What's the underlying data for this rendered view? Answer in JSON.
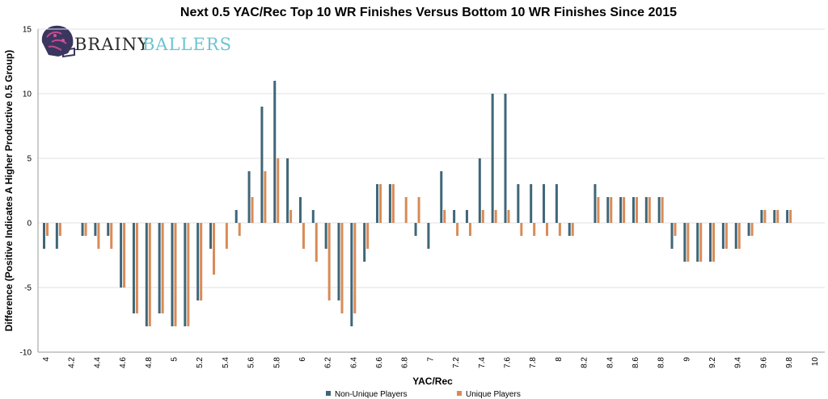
{
  "colors": {
    "non_unique": "#3f6678",
    "unique": "#d98b57",
    "grid": "#e2e2e2",
    "axis": "#999999",
    "logo_dark": "#2b2b2b",
    "logo_light": "#6cc4d2"
  },
  "logo": {
    "text_dark": "BRAINY",
    "text_light": "BALLERS",
    "icon": "football-helmet-brain-icon"
  },
  "chart_data": {
    "type": "bar",
    "title": "Next 0.5 YAC/Rec Top 10 WR Finishes Versus Bottom 10 WR Finishes Since 2015",
    "xlabel": "YAC/Rec",
    "ylabel": "Difference (Positive Indicates A Higher Productive 0.5 Group)",
    "ylim": [
      -10,
      15
    ],
    "yticks": [
      -10,
      -5,
      0,
      5,
      10,
      15
    ],
    "grid": "horizontal",
    "legend": "bottom-center",
    "categories": [
      "4",
      "4.1",
      "4.2",
      "4.3",
      "4.4",
      "4.5",
      "4.6",
      "4.7",
      "4.8",
      "4.9",
      "5",
      "5.1",
      "5.2",
      "5.3",
      "5.4",
      "5.5",
      "5.6",
      "5.7",
      "5.8",
      "5.9",
      "6",
      "6.1",
      "6.2",
      "6.3",
      "6.4",
      "6.5",
      "6.6",
      "6.7",
      "6.8",
      "6.9",
      "7",
      "7.1",
      "7.2",
      "7.3",
      "7.4",
      "7.5",
      "7.6",
      "7.7",
      "7.8",
      "7.9",
      "8",
      "8.1",
      "8.2",
      "8.3",
      "8.4",
      "8.5",
      "8.6",
      "8.7",
      "8.8",
      "8.9",
      "9",
      "9.1",
      "9.2",
      "9.3",
      "9.4",
      "9.5",
      "9.6",
      "9.7",
      "9.8",
      "9.9",
      "10"
    ],
    "category_labels": [
      "4",
      "",
      "4.2",
      "",
      "4.4",
      "",
      "4.6",
      "",
      "4.8",
      "",
      "5",
      "",
      "5.2",
      "",
      "5.4",
      "",
      "5.6",
      "",
      "5.8",
      "",
      "6",
      "",
      "6.2",
      "",
      "6.4",
      "",
      "6.6",
      "",
      "6.8",
      "",
      "7",
      "",
      "7.2",
      "",
      "7.4",
      "",
      "7.6",
      "",
      "7.8",
      "",
      "8",
      "",
      "8.2",
      "",
      "8.4",
      "",
      "8.6",
      "",
      "8.8",
      "",
      "9",
      "",
      "9.2",
      "",
      "9.4",
      "",
      "9.6",
      "",
      "9.8",
      "",
      "10"
    ],
    "series": [
      {
        "name": "Non-Unique Players",
        "values": [
          -2,
          -2,
          0,
          -1,
          -1,
          -1,
          -5,
          -7,
          -8,
          -7,
          -8,
          -8,
          -6,
          -2,
          0,
          1,
          4,
          9,
          11,
          5,
          2,
          1,
          -2,
          -6,
          -8,
          -3,
          3,
          3,
          0,
          -1,
          -2,
          4,
          1,
          1,
          5,
          10,
          10,
          3,
          3,
          3,
          3,
          -1,
          0,
          3,
          2,
          2,
          2,
          2,
          2,
          -2,
          -3,
          -3,
          -3,
          -2,
          -2,
          -1,
          1,
          1,
          1,
          0,
          0
        ]
      },
      {
        "name": "Unique Players",
        "values": [
          -1,
          -1,
          0,
          -1,
          -2,
          -2,
          -5,
          -7,
          -8,
          -7,
          -8,
          -8,
          -6,
          -4,
          -2,
          -1,
          2,
          4,
          5,
          1,
          -2,
          -3,
          -6,
          -7,
          -7,
          -2,
          3,
          3,
          2,
          2,
          0,
          1,
          -1,
          -1,
          1,
          1,
          1,
          -1,
          -1,
          -1,
          -1,
          -1,
          0,
          2,
          2,
          2,
          2,
          2,
          2,
          -1,
          -3,
          -3,
          -3,
          -2,
          -2,
          -1,
          1,
          1,
          1,
          0,
          0
        ]
      }
    ]
  }
}
